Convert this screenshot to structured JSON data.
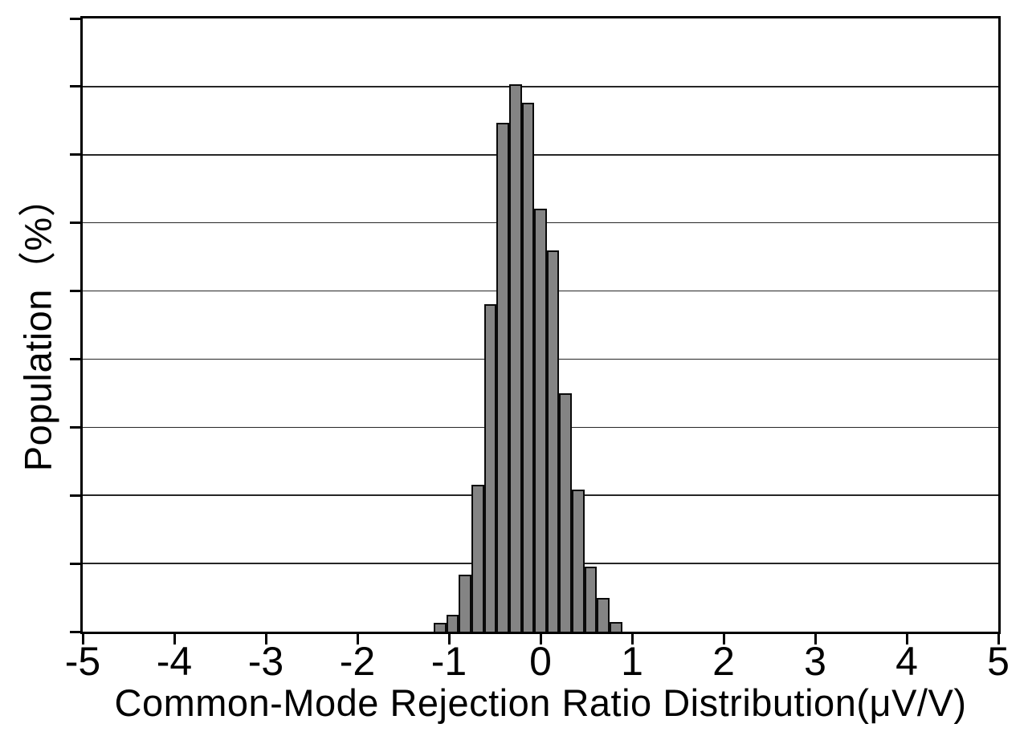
{
  "figure": {
    "background": "#ffffff",
    "bar_fill": "#848484",
    "bar_border": "#0a0a0a",
    "axis_color": "#000000",
    "gridline_color": "#000000"
  },
  "chart_data": {
    "type": "bar",
    "subtype": "histogram",
    "title": "",
    "xlabel": "Common-Mode Rejection Ratio Distribution(μV/V)",
    "ylabel": "Population（%）",
    "xlim": [
      -5,
      5
    ],
    "x_ticks": [
      -5,
      -4,
      -3,
      -2,
      -1,
      0,
      1,
      2,
      3,
      4,
      5
    ],
    "y_axis": {
      "tick_labels": "none",
      "grid_divisions": 9,
      "gridlines": "horizontal",
      "units_note": "y-axis shows tick marks and gridlines only; heights given in gridline-interval units (axis = 9 intervals)"
    },
    "legend": "none",
    "bin_width": 0.137,
    "bin_centers": [
      -1.096,
      -0.959,
      -0.822,
      -0.685,
      -0.548,
      -0.411,
      -0.274,
      -0.137,
      0.0,
      0.137,
      0.274,
      0.411,
      0.548,
      0.685,
      0.822
    ],
    "values_grid_units": [
      0.13,
      0.25,
      0.84,
      2.16,
      4.81,
      7.47,
      8.03,
      7.76,
      6.21,
      5.59,
      3.5,
      2.08,
      0.95,
      0.49,
      0.14
    ]
  }
}
